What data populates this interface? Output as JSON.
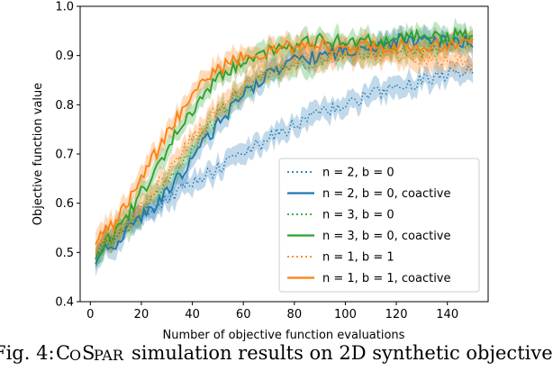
{
  "chart_data": {
    "type": "line",
    "xlabel": "Number of objective function evaluations",
    "ylabel": "Objective function value",
    "xlim": [
      -4,
      156
    ],
    "ylim": [
      0.4,
      1.0
    ],
    "xticks": [
      0,
      20,
      40,
      60,
      80,
      100,
      120,
      140
    ],
    "yticks": [
      0.4,
      0.5,
      0.6,
      0.7,
      0.8,
      0.9,
      1.0
    ],
    "xtick_labels": [
      "0",
      "20",
      "40",
      "60",
      "80",
      "100",
      "120",
      "140"
    ],
    "ytick_labels": [
      "0.4",
      "0.5",
      "0.6",
      "0.7",
      "0.8",
      "0.9",
      "1.0"
    ],
    "grid": false,
    "legend_position": "bottom-right",
    "series": [
      {
        "name": "n = 2, b = 0",
        "color": "#1f77b4",
        "style": "dotted",
        "x": [
          2,
          10,
          20,
          30,
          40,
          50,
          60,
          70,
          80,
          90,
          100,
          110,
          120,
          130,
          140,
          150
        ],
        "y": [
          0.5,
          0.54,
          0.58,
          0.61,
          0.64,
          0.67,
          0.7,
          0.73,
          0.76,
          0.78,
          0.8,
          0.82,
          0.83,
          0.85,
          0.86,
          0.87
        ]
      },
      {
        "name": "n = 2, b = 0, coactive",
        "color": "#1f77b4",
        "style": "solid",
        "x": [
          2,
          10,
          20,
          30,
          40,
          50,
          60,
          70,
          80,
          90,
          100,
          110,
          120,
          130,
          140,
          150
        ],
        "y": [
          0.49,
          0.52,
          0.57,
          0.62,
          0.69,
          0.76,
          0.82,
          0.86,
          0.89,
          0.9,
          0.91,
          0.92,
          0.93,
          0.93,
          0.93,
          0.93
        ]
      },
      {
        "name": "n = 3, b = 0",
        "color": "#2ca02c",
        "style": "dotted",
        "x": [
          2,
          10,
          20,
          30,
          40,
          50,
          60,
          70,
          80,
          90,
          100,
          110,
          120,
          130,
          140,
          150
        ],
        "y": [
          0.5,
          0.53,
          0.58,
          0.64,
          0.71,
          0.78,
          0.83,
          0.86,
          0.88,
          0.89,
          0.9,
          0.91,
          0.91,
          0.91,
          0.92,
          0.92
        ]
      },
      {
        "name": "n = 3, b = 0, coactive",
        "color": "#2ca02c",
        "style": "solid",
        "x": [
          2,
          10,
          20,
          30,
          40,
          50,
          60,
          70,
          80,
          90,
          100,
          110,
          120,
          130,
          140,
          150
        ],
        "y": [
          0.5,
          0.54,
          0.62,
          0.71,
          0.79,
          0.85,
          0.89,
          0.91,
          0.92,
          0.93,
          0.93,
          0.93,
          0.93,
          0.94,
          0.94,
          0.94
        ]
      },
      {
        "name": "n = 1, b = 1",
        "color": "#ff7f0e",
        "style": "dotted",
        "x": [
          2,
          10,
          20,
          30,
          40,
          50,
          60,
          70,
          80,
          90,
          100,
          110,
          120,
          130,
          140,
          150
        ],
        "y": [
          0.51,
          0.54,
          0.59,
          0.66,
          0.73,
          0.79,
          0.84,
          0.87,
          0.89,
          0.9,
          0.9,
          0.9,
          0.9,
          0.89,
          0.89,
          0.89
        ]
      },
      {
        "name": "n = 1, b = 1, coactive",
        "color": "#ff7f0e",
        "style": "solid",
        "x": [
          2,
          10,
          20,
          30,
          40,
          50,
          60,
          70,
          80,
          90,
          100,
          110,
          120,
          130,
          140,
          150
        ],
        "y": [
          0.53,
          0.56,
          0.65,
          0.74,
          0.82,
          0.87,
          0.9,
          0.91,
          0.92,
          0.92,
          0.92,
          0.92,
          0.92,
          0.92,
          0.92,
          0.92
        ]
      }
    ]
  },
  "caption": {
    "prefix": "Fig. 4: ",
    "name_c": "C",
    "name_o": "O",
    "name_s": "S",
    "name_par": "PAR",
    "rest": " simulation results on 2D synthetic objective"
  }
}
